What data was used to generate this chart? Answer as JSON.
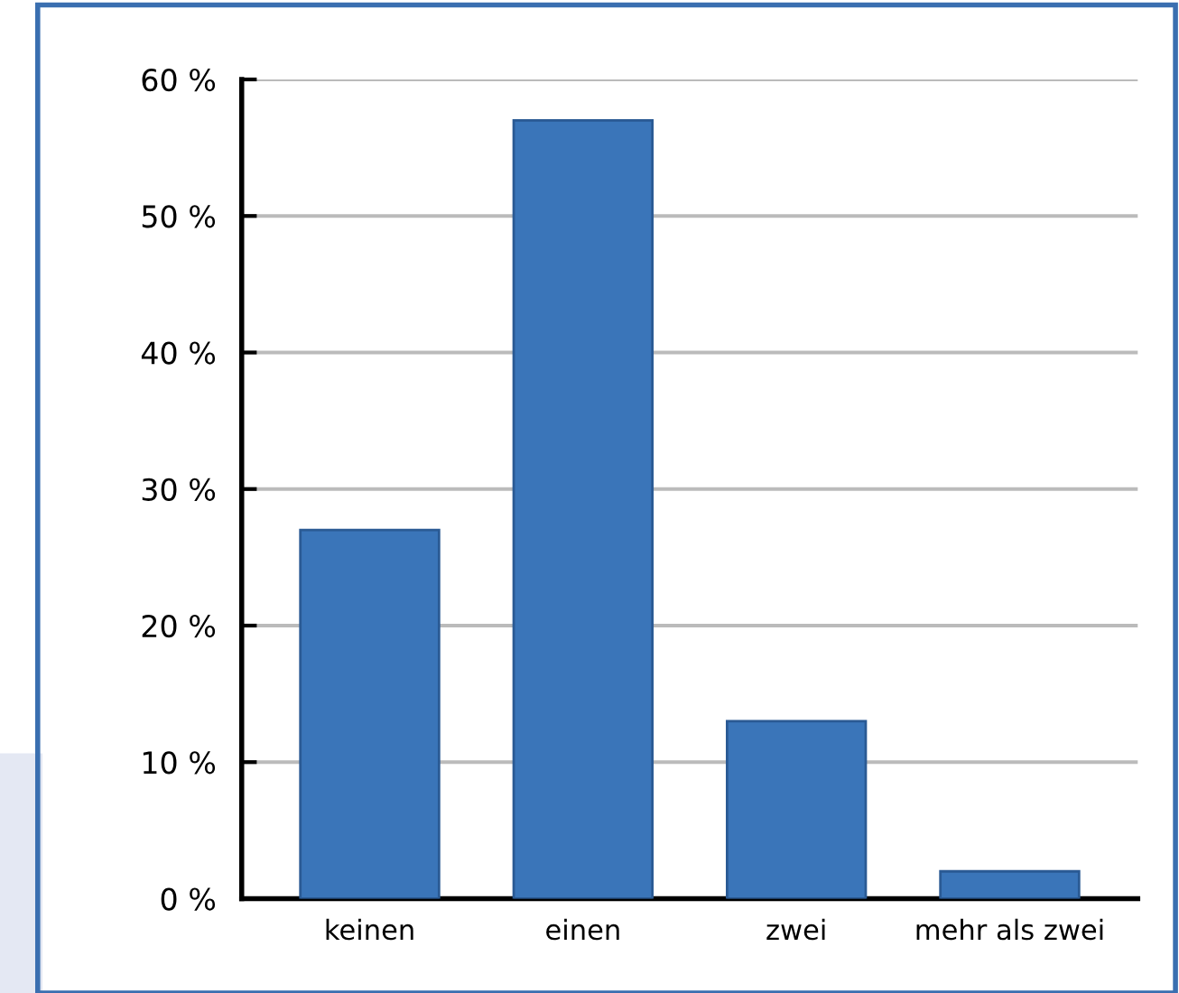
{
  "chart_data": {
    "type": "bar",
    "categories": [
      "keinen",
      "einen",
      "zwei",
      "mehr als zwei"
    ],
    "values": [
      27,
      57,
      13,
      2
    ],
    "color": "#3a75b9",
    "ylim": [
      0,
      60
    ],
    "yticks": [
      {
        "value": 0,
        "label": "0 %"
      },
      {
        "value": 10,
        "label": "10 %"
      },
      {
        "value": 20,
        "label": "20 %"
      },
      {
        "value": 30,
        "label": "30 %"
      },
      {
        "value": 40,
        "label": "40 %"
      },
      {
        "value": 50,
        "label": "50 %"
      },
      {
        "value": 60,
        "label": "60 %"
      }
    ],
    "grid": "y"
  }
}
